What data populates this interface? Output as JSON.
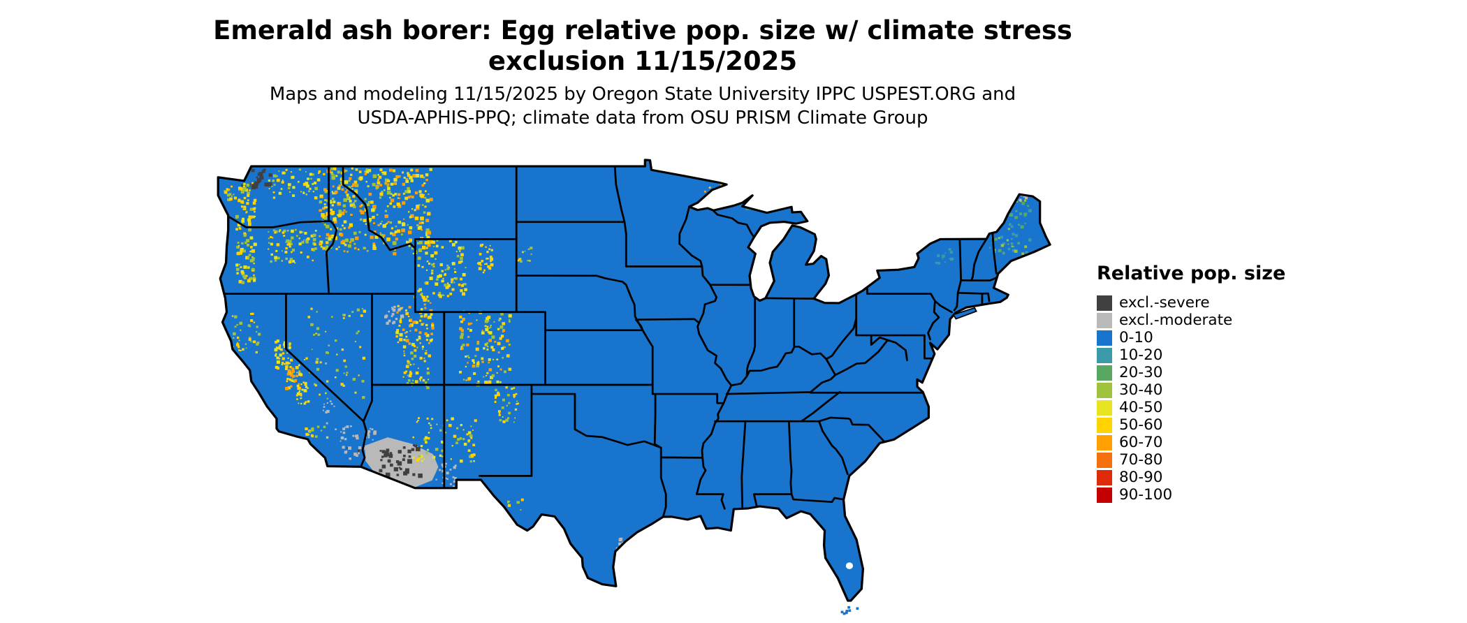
{
  "title": {
    "line1": "Emerald ash borer: Egg relative pop. size w/ climate stress",
    "line2": "exclusion 11/15/2025"
  },
  "subtitle": {
    "line1": "Maps and modeling 11/15/2025 by Oregon State University IPPC USPEST.ORG and",
    "line2": "USDA-APHIS-PPQ; climate data from OSU PRISM Climate Group"
  },
  "legend": {
    "title": "Relative pop. size",
    "items": [
      {
        "label": "excl.-severe",
        "color": "#404040"
      },
      {
        "label": "excl.-moderate",
        "color": "#b9b9b9"
      },
      {
        "label": "0-10",
        "color": "#1874cd"
      },
      {
        "label": "10-20",
        "color": "#3c9ba8"
      },
      {
        "label": "20-30",
        "color": "#58a861"
      },
      {
        "label": "30-40",
        "color": "#9fc33c"
      },
      {
        "label": "40-50",
        "color": "#e8e421"
      },
      {
        "label": "50-60",
        "color": "#ffd300"
      },
      {
        "label": "60-70",
        "color": "#ffa000"
      },
      {
        "label": "70-80",
        "color": "#f4700e"
      },
      {
        "label": "80-90",
        "color": "#df2a0c"
      },
      {
        "label": "90-100",
        "color": "#c50000"
      }
    ]
  },
  "map": {
    "base_color": "#1874cd",
    "border_color": "#000000",
    "background_color": "#ffffff"
  }
}
